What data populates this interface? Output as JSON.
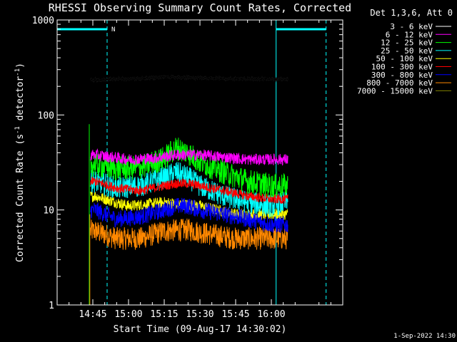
{
  "chart_data": {
    "type": "line",
    "title": "RHESSI Observing Summary Count Rates, Corrected",
    "xlabel": "Start Time (09-Aug-17 14:30:02)",
    "ylabel_prefix": "Corrected Count Rate (s",
    "ylabel_sup1": "-1",
    "ylabel_mid": " detector",
    "ylabel_sup2": "-1",
    "ylabel_suffix": ")",
    "yscale": "log",
    "ylim": [
      1,
      1000
    ],
    "xlim_minutes_after_1430": [
      0,
      120
    ],
    "x_ticks": [
      {
        "label": "14:45",
        "minutes": 15
      },
      {
        "label": "15:00",
        "minutes": 30
      },
      {
        "label": "15:15",
        "minutes": 45
      },
      {
        "label": "15:30",
        "minutes": 60
      },
      {
        "label": "15:45",
        "minutes": 75
      },
      {
        "label": "16:00",
        "minutes": 90
      }
    ],
    "y_ticks": [
      {
        "label": "1",
        "value": 1
      },
      {
        "label": "10",
        "value": 10
      },
      {
        "label": "100",
        "value": 100
      },
      {
        "label": "1000",
        "value": 1000
      }
    ],
    "legend_header": "Det 1,3,6, Att 0",
    "legend_position": "top-right",
    "date_stamp": "1-Sep-2022 14:30",
    "night_marker": "N",
    "data_start_minutes": 13.5,
    "data_end_minutes": 97,
    "night_start_minutes": 21,
    "day_start_minutes": 92,
    "saa_line_minutes": [
      0,
      92
    ],
    "series": [
      {
        "name": "3 - 6 keV",
        "color": "#000000",
        "points": [
          [
            16,
            235
          ],
          [
            30,
            240
          ],
          [
            45,
            250
          ],
          [
            60,
            245
          ],
          [
            75,
            240
          ],
          [
            96,
            238
          ]
        ]
      },
      {
        "name": "6 - 12 keV",
        "color": "#ff00ff",
        "points": [
          [
            16,
            38
          ],
          [
            30,
            34
          ],
          [
            40,
            35
          ],
          [
            50,
            38
          ],
          [
            60,
            38
          ],
          [
            70,
            36
          ],
          [
            80,
            34
          ],
          [
            96,
            34
          ]
        ]
      },
      {
        "name": "12 - 25 keV",
        "color": "#00ff00",
        "points": [
          [
            16,
            30
          ],
          [
            25,
            27
          ],
          [
            35,
            28
          ],
          [
            45,
            35
          ],
          [
            50,
            45
          ],
          [
            55,
            40
          ],
          [
            60,
            32
          ],
          [
            70,
            25
          ],
          [
            80,
            20
          ],
          [
            90,
            18
          ],
          [
            96,
            18
          ]
        ]
      },
      {
        "name": "25 - 50 keV",
        "color": "#00ffff",
        "points": [
          [
            16,
            20
          ],
          [
            25,
            17
          ],
          [
            35,
            18
          ],
          [
            45,
            22
          ],
          [
            50,
            25
          ],
          [
            55,
            22
          ],
          [
            60,
            18
          ],
          [
            70,
            14
          ],
          [
            80,
            12
          ],
          [
            90,
            11
          ],
          [
            96,
            12
          ]
        ]
      },
      {
        "name": "50 - 100 keV",
        "color": "#ffff00",
        "points": [
          [
            16,
            14
          ],
          [
            30,
            11
          ],
          [
            45,
            12
          ],
          [
            60,
            11
          ],
          [
            75,
            9
          ],
          [
            96,
            9
          ]
        ]
      },
      {
        "name": "100 - 300 keV",
        "color": "#ff0000",
        "points": [
          [
            16,
            20
          ],
          [
            25,
            17
          ],
          [
            35,
            16
          ],
          [
            45,
            18
          ],
          [
            50,
            19
          ],
          [
            55,
            19
          ],
          [
            60,
            18
          ],
          [
            70,
            16
          ],
          [
            80,
            14
          ],
          [
            90,
            13
          ],
          [
            96,
            13
          ]
        ]
      },
      {
        "name": "300 - 800 keV",
        "color": "#0000ff",
        "points": [
          [
            16,
            10
          ],
          [
            25,
            8
          ],
          [
            35,
            8.5
          ],
          [
            45,
            10
          ],
          [
            50,
            11
          ],
          [
            55,
            11
          ],
          [
            60,
            10
          ],
          [
            70,
            9
          ],
          [
            80,
            8
          ],
          [
            90,
            7
          ],
          [
            96,
            7
          ]
        ]
      },
      {
        "name": "800 - 7000 keV",
        "color": "#ff8800",
        "points": [
          [
            16,
            6
          ],
          [
            25,
            5
          ],
          [
            35,
            5
          ],
          [
            45,
            6
          ],
          [
            55,
            6.2
          ],
          [
            65,
            5.5
          ],
          [
            75,
            5
          ],
          [
            96,
            5
          ]
        ]
      },
      {
        "name": "7000 - 15000 keV",
        "color": "#808000",
        "points": []
      }
    ],
    "colors": {
      "axes": "#ffffff",
      "saa": "#00ffff",
      "background": "#000000"
    }
  }
}
